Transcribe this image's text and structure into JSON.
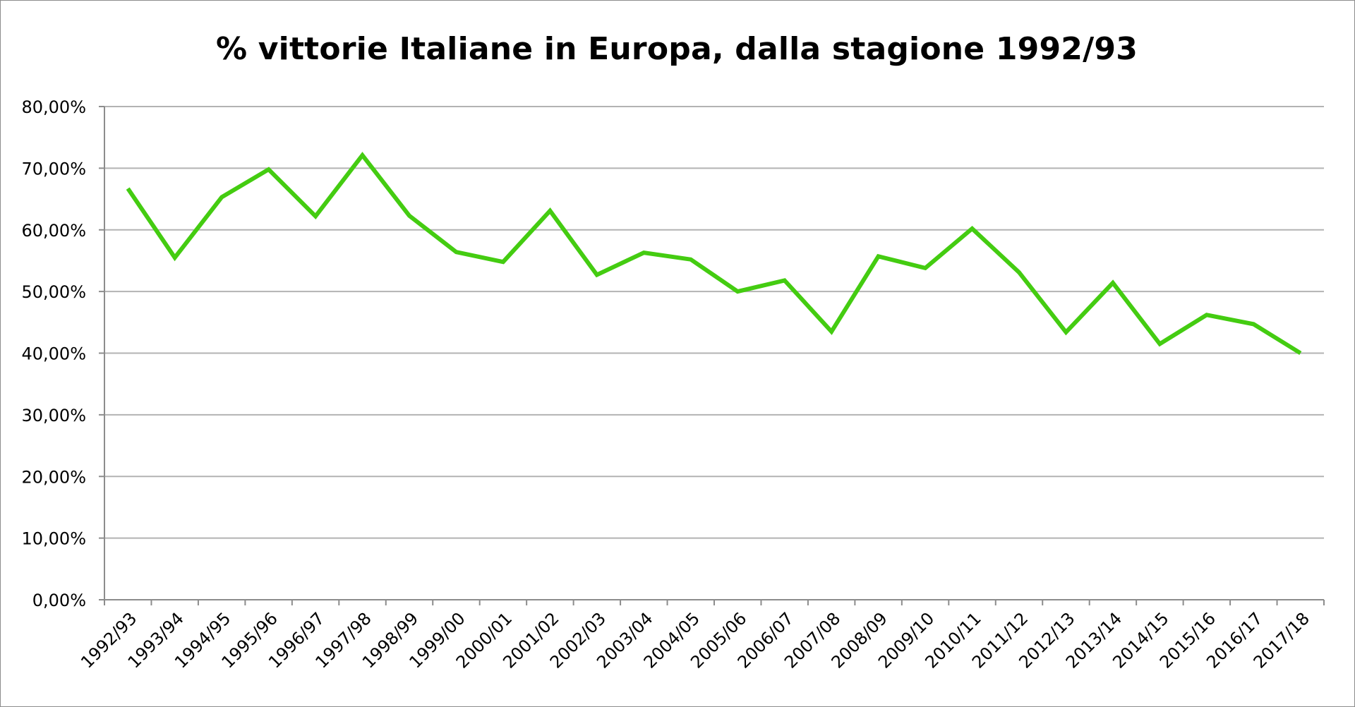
{
  "chart_data": {
    "type": "line",
    "title": "% vittorie Italiane in Europa, dalla stagione 1992/93",
    "xlabel": "",
    "ylabel": "",
    "categories": [
      "1992/93",
      "1993/94",
      "1994/95",
      "1995/96",
      "1996/97",
      "1997/98",
      "1998/99",
      "1999/00",
      "2000/01",
      "2001/02",
      "2002/03",
      "2003/04",
      "2004/05",
      "2005/06",
      "2006/07",
      "2007/08",
      "2008/09",
      "2009/10",
      "2010/11",
      "2011/12",
      "2012/13",
      "2013/14",
      "2014/15",
      "2015/16",
      "2016/17",
      "2017/18"
    ],
    "series": [
      {
        "values": [
          0.667,
          0.555,
          0.653,
          0.698,
          0.622,
          0.721,
          0.623,
          0.564,
          0.548,
          0.631,
          0.527,
          0.563,
          0.552,
          0.5,
          0.518,
          0.435,
          0.557,
          0.538,
          0.602,
          0.531,
          0.434,
          0.514,
          0.415,
          0.462,
          0.447,
          0.4
        ],
        "color": "#44cc11"
      }
    ],
    "ylim": [
      0,
      0.8
    ],
    "yticks": [
      "0,00%",
      "10,00%",
      "20,00%",
      "30,00%",
      "40,00%",
      "50,00%",
      "60,00%",
      "70,00%",
      "80,00%"
    ],
    "grid": true,
    "legend": "none"
  }
}
